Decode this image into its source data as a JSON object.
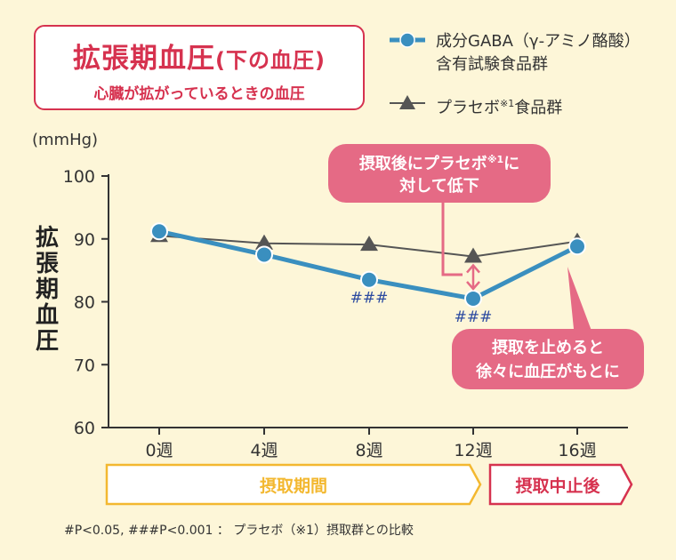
{
  "title": {
    "main": "拡張期血圧",
    "main_paren": "(下の血圧)",
    "sub": "心臓が拡がっているときの血圧"
  },
  "legend": [
    {
      "name": "成分GABA（γ-アミノ酪酸）",
      "name2": "含有試験食品群",
      "marker": "circle-icon"
    },
    {
      "name": "プラセボ",
      "sup": "※1",
      "name_suffix": "食品群",
      "marker": "triangle-icon"
    }
  ],
  "unit_label": "(mmHg)",
  "ylabel": "拡張期血圧",
  "callouts": {
    "top": {
      "line1": "摂取後にプラセボ",
      "sup": "※1",
      "line1_end": "に",
      "line2": "対して低下"
    },
    "bottom": {
      "line1": "摂取を止めると",
      "line2": "徐々に血圧がもとに"
    }
  },
  "phase": {
    "intake": "摂取期間",
    "after": "摂取中止後"
  },
  "footnote": "#P<0.05, ###P<0.001 ： プラセボ（※1）摂取群との比較",
  "colors": {
    "gaba": "#3a8fbf",
    "placebo": "#555555",
    "accent": "#d6324f",
    "callout": "#e56a85",
    "phase": "#f3b830"
  },
  "chart_data": {
    "type": "line",
    "categories": [
      "0週",
      "4週",
      "8週",
      "12週",
      "16週"
    ],
    "ylim": [
      60,
      100
    ],
    "yticks": [
      60,
      70,
      80,
      90,
      100
    ],
    "grid": false,
    "series": [
      {
        "name": "成分GABA（γ-アミノ酪酸）含有試験食品群",
        "values": [
          91.2,
          87.5,
          83.5,
          80.5,
          88.8
        ],
        "marker": "circle"
      },
      {
        "name": "プラセボ※1食品群",
        "values": [
          90.5,
          89.3,
          89.1,
          87.2,
          89.6
        ],
        "marker": "triangle"
      }
    ],
    "significance": [
      {
        "category": "8週",
        "label": "###"
      },
      {
        "category": "12週",
        "label": "###"
      }
    ]
  }
}
